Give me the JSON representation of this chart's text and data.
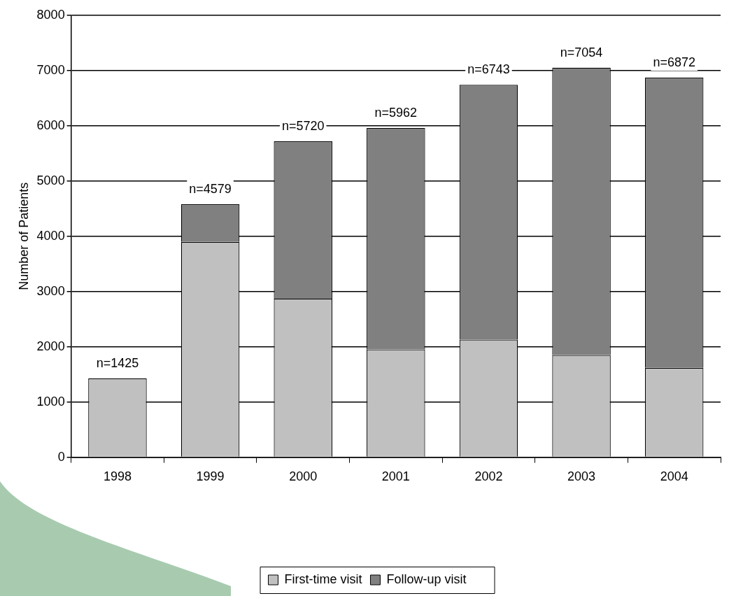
{
  "chart_data": {
    "type": "bar",
    "stacked": true,
    "categories": [
      "1998",
      "1999",
      "2000",
      "2001",
      "2002",
      "2003",
      "2004"
    ],
    "series": [
      {
        "name": "First-time visit",
        "color": "#c0c0c0",
        "values": [
          1425,
          3900,
          2870,
          1950,
          2130,
          1850,
          1620
        ]
      },
      {
        "name": "Follow-up visit",
        "color": "#808080",
        "values": [
          0,
          679,
          2850,
          4012,
          4613,
          5204,
          5252
        ]
      }
    ],
    "totals": [
      "n=1425",
      "n=4579",
      "n=5720",
      "n=5962",
      "n=6743",
      "n=7054",
      "n=6872"
    ],
    "ylabel": "Number of Patients",
    "ylim": [
      0,
      8000
    ],
    "yticks": [
      0,
      1000,
      2000,
      3000,
      4000,
      5000,
      6000,
      7000,
      8000
    ],
    "grid": "y",
    "legend": "bottom"
  }
}
